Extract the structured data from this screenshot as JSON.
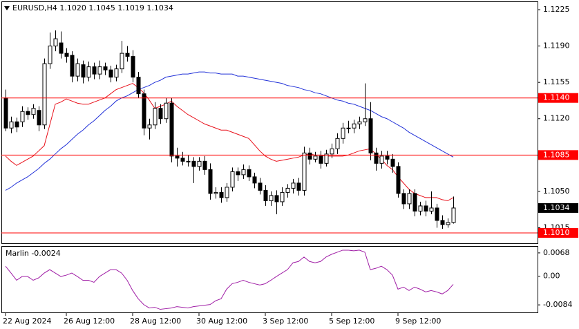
{
  "chart_data": [
    {
      "type": "candlestick",
      "title": "EURUSD,H4  1.1020 1.1045 1.1019 1.1034",
      "categories": [
        "22 Aug 2024",
        null,
        null,
        null,
        null,
        null,
        null,
        null,
        null,
        null,
        null,
        "26 Aug 12:00",
        null,
        null,
        null,
        null,
        null,
        null,
        null,
        null,
        null,
        null,
        null,
        "28 Aug 12:00",
        null,
        null,
        null,
        null,
        null,
        null,
        null,
        null,
        null,
        null,
        null,
        "30 Aug 12:00",
        null,
        null,
        null,
        null,
        null,
        null,
        null,
        null,
        null,
        null,
        null,
        "3 Sep 12:00",
        null,
        null,
        null,
        null,
        null,
        null,
        null,
        null,
        null,
        null,
        null,
        "5 Sep 12:00",
        null,
        null,
        null,
        null,
        null,
        null,
        null,
        null,
        null,
        null,
        null,
        "9 Sep 12:00",
        null,
        null,
        null,
        null,
        null,
        null,
        null,
        null,
        null,
        null
      ],
      "open": [
        1.114,
        1.1111,
        1.1117,
        1.1117,
        1.1127,
        1.1124,
        1.1128,
        1.1114,
        1.1173,
        1.119,
        1.1193,
        1.1183,
        1.1181,
        1.1161,
        1.1172,
        1.116,
        1.117,
        1.1163,
        1.117,
        1.1167,
        1.116,
        1.1168,
        1.1183,
        1.118,
        1.116,
        1.1144,
        1.1111,
        1.1114,
        1.113,
        1.112,
        1.1135,
        1.1084,
        1.1082,
        1.1079,
        1.1079,
        1.1074,
        1.1079,
        1.1071,
        1.1048,
        1.1049,
        1.1044,
        1.1054,
        1.1069,
        1.1066,
        1.1071,
        1.1064,
        1.1058,
        1.1051,
        1.1041,
        1.1046,
        1.104,
        1.1049,
        1.1053,
        1.1058,
        1.1051,
        1.1087,
        1.1081,
        1.1084,
        1.1077,
        1.1086,
        1.1091,
        1.1101,
        1.1111,
        1.1111,
        1.1115,
        1.1117,
        1.112,
        1.1087,
        1.1077,
        1.1084,
        1.1081,
        1.1074,
        1.1048,
        1.1038,
        1.1048,
        1.1031,
        1.1036,
        1.1031,
        1.1034,
        1.1022,
        1.1018,
        1.102
      ],
      "high": [
        1.1148,
        1.1122,
        1.1121,
        1.1132,
        1.1131,
        1.1134,
        1.1132,
        1.1178,
        1.1203,
        1.1205,
        1.1204,
        1.1188,
        1.1185,
        1.1178,
        1.1176,
        1.1175,
        1.1174,
        1.1176,
        1.1174,
        1.1171,
        1.1172,
        1.1195,
        1.119,
        1.1186,
        1.1165,
        1.1148,
        1.112,
        1.1136,
        1.1134,
        1.114,
        1.114,
        1.1092,
        1.1088,
        1.1085,
        1.1083,
        1.1083,
        1.1084,
        1.1077,
        1.1054,
        1.1054,
        1.1058,
        1.1073,
        1.1073,
        1.1076,
        1.1075,
        1.1068,
        1.1063,
        1.1056,
        1.105,
        1.1051,
        1.1054,
        1.1057,
        1.1062,
        1.1063,
        1.1093,
        1.1092,
        1.1088,
        1.1089,
        1.109,
        1.1096,
        1.1106,
        1.1116,
        1.1118,
        1.1119,
        1.1122,
        1.1154,
        1.1136,
        1.1092,
        1.1089,
        1.1089,
        1.1086,
        1.1078,
        1.1052,
        1.1052,
        1.1052,
        1.104,
        1.1041,
        1.105,
        1.1038,
        1.1027,
        1.1024,
        1.1045
      ],
      "low": [
        1.1108,
        1.1106,
        1.1107,
        1.1112,
        1.1119,
        1.112,
        1.1108,
        1.111,
        1.1168,
        1.1185,
        1.1178,
        1.1174,
        1.1155,
        1.1156,
        1.1154,
        1.1156,
        1.1158,
        1.1158,
        1.1162,
        1.1155,
        1.1156,
        1.1164,
        1.1175,
        1.1155,
        1.114,
        1.1104,
        1.11,
        1.111,
        1.1115,
        1.1116,
        1.1078,
        1.1074,
        1.1075,
        1.1074,
        1.1058,
        1.107,
        1.1066,
        1.1042,
        1.1043,
        1.1039,
        1.104,
        1.105,
        1.106,
        1.1062,
        1.106,
        1.1053,
        1.1047,
        1.1036,
        1.1036,
        1.1028,
        1.1036,
        1.1044,
        1.1048,
        1.1046,
        1.1046,
        1.1076,
        1.1078,
        1.1072,
        1.1074,
        1.1082,
        1.1086,
        1.1096,
        1.1106,
        1.1106,
        1.111,
        1.1113,
        1.108,
        1.107,
        1.1072,
        1.1076,
        1.1068,
        1.1044,
        1.1033,
        1.1033,
        1.1026,
        1.1027,
        1.1026,
        1.1028,
        1.1015,
        1.1014,
        1.1015,
        1.1019
      ],
      "close": [
        1.1111,
        1.1117,
        1.1112,
        1.1127,
        1.1124,
        1.113,
        1.1114,
        1.1173,
        1.119,
        1.1197,
        1.1183,
        1.118,
        1.1161,
        1.1173,
        1.116,
        1.117,
        1.1163,
        1.117,
        1.1167,
        1.116,
        1.1168,
        1.1183,
        1.118,
        1.116,
        1.1144,
        1.1111,
        1.1114,
        1.113,
        1.112,
        1.1135,
        1.1084,
        1.1082,
        1.1079,
        1.1079,
        1.1074,
        1.1079,
        1.1071,
        1.1048,
        1.1049,
        1.1044,
        1.1054,
        1.1069,
        1.1066,
        1.1071,
        1.1064,
        1.1058,
        1.1051,
        1.1041,
        1.1046,
        1.104,
        1.1049,
        1.1053,
        1.1058,
        1.1051,
        1.1087,
        1.1081,
        1.1084,
        1.1077,
        1.1086,
        1.1091,
        1.1101,
        1.1111,
        1.1111,
        1.1115,
        1.1117,
        1.112,
        1.1087,
        1.1077,
        1.1084,
        1.1081,
        1.1074,
        1.1048,
        1.1038,
        1.1048,
        1.1031,
        1.1036,
        1.1031,
        1.1034,
        1.1022,
        1.1018,
        1.102,
        1.1034
      ],
      "up_color": "#ffffff",
      "down_color": "#000000",
      "series": [
        {
          "color": "#e8101a",
          "values": [
            1.1084,
            1.1079,
            1.1075,
            1.1078,
            1.1081,
            1.1084,
            1.1089,
            1.1094,
            1.1114,
            1.1134,
            1.1136,
            1.1139,
            1.1137,
            1.1135,
            1.1134,
            1.1134,
            1.1136,
            1.1138,
            1.114,
            1.1144,
            1.1148,
            1.115,
            1.1152,
            1.1154,
            1.115,
            1.1145,
            1.1138,
            1.113,
            1.1132,
            1.1134,
            1.1137,
            1.1132,
            1.1128,
            1.1124,
            1.1121,
            1.1118,
            1.1115,
            1.1113,
            1.1111,
            1.1109,
            1.1109,
            1.1107,
            1.1105,
            1.1103,
            1.1101,
            1.1095,
            1.1089,
            1.1084,
            1.1081,
            1.1079,
            1.108,
            1.1081,
            1.1082,
            1.1083,
            1.1085,
            1.1086,
            1.1085,
            1.1085,
            1.1084,
            1.1084,
            1.1084,
            1.1084,
            1.1085,
            1.1087,
            1.1089,
            1.109,
            1.1091,
            1.1086,
            1.1081,
            1.1075,
            1.1071,
            1.1064,
            1.1058,
            1.1052,
            1.1048,
            1.1046,
            1.1044,
            1.1044,
            1.1044,
            1.1042,
            1.1041,
            1.1044
          ]
        },
        {
          "color": "#2030d8",
          "values": [
            1.1051,
            1.1054,
            1.1058,
            1.1061,
            1.1064,
            1.1068,
            1.1072,
            1.1077,
            1.1081,
            1.1086,
            1.1091,
            1.1095,
            1.11,
            1.1105,
            1.1109,
            1.1114,
            1.1118,
            1.1123,
            1.1128,
            1.1132,
            1.1137,
            1.114,
            1.1142,
            1.1145,
            1.1148,
            1.115,
            1.1152,
            1.1155,
            1.1157,
            1.116,
            1.1161,
            1.1162,
            1.1163,
            1.1163,
            1.1164,
            1.1165,
            1.1165,
            1.1164,
            1.1164,
            1.1163,
            1.1163,
            1.1163,
            1.1161,
            1.1161,
            1.116,
            1.1159,
            1.1158,
            1.1157,
            1.1156,
            1.1155,
            1.1154,
            1.1152,
            1.1151,
            1.115,
            1.1148,
            1.1147,
            1.1145,
            1.1144,
            1.1142,
            1.114,
            1.1138,
            1.1137,
            1.1135,
            1.1134,
            1.1132,
            1.113,
            1.1128,
            1.1125,
            1.1122,
            1.112,
            1.1117,
            1.1114,
            1.1111,
            1.1107,
            1.1104,
            1.1101,
            1.1098,
            1.1095,
            1.1092,
            1.1089,
            1.1086,
            1.1083
          ]
        }
      ],
      "levels": [
        {
          "value": 1.114,
          "label": "1.1140"
        },
        {
          "value": 1.1085,
          "label": "1.1085"
        },
        {
          "value": 1.101,
          "label": "1.1010"
        }
      ],
      "color": "#ff0000",
      "last_price": {
        "value": 1.1034,
        "label": "1.1034"
      },
      "ylim": [
        1.1,
        1.1233
      ],
      "yticks": [
        1.1225,
        {
          "value": 1.119,
          "label": "1.1190"
        },
        1.1155,
        {
          "value": 1.112,
          "label": "1.1120"
        },
        1.1085,
        {
          "value": 1.105,
          "label": "1.1050"
        },
        1.1015
      ]
    },
    {
      "type": "line",
      "title": "Marlin -0.0024",
      "color": "#a01ea6",
      "values": [
        0.0029,
        0.0009,
        -0.0012,
        -0.0001,
        -0.0001,
        -0.0012,
        -0.0005,
        0.0009,
        0.0019,
        0.0009,
        -0.0001,
        0.0003,
        0.0009,
        -0.0001,
        -0.0012,
        -0.0012,
        -0.0018,
        -0.0001,
        0.0009,
        0.0019,
        0.0019,
        0.0009,
        -0.0012,
        -0.0042,
        -0.0066,
        -0.0083,
        -0.0093,
        -0.0091,
        -0.0097,
        -0.0095,
        -0.0093,
        -0.0089,
        -0.0091,
        -0.0093,
        -0.0089,
        -0.0087,
        -0.0085,
        -0.0083,
        -0.0072,
        -0.0066,
        -0.0038,
        -0.0022,
        -0.0018,
        -0.0012,
        -0.0018,
        -0.0022,
        -0.0026,
        -0.0022,
        -0.0012,
        -0.0001,
        0.0009,
        0.0019,
        0.0039,
        0.0043,
        0.0056,
        0.0043,
        0.0039,
        0.0043,
        0.0056,
        0.0064,
        0.007,
        0.0076,
        0.0076,
        0.0074,
        0.0076,
        0.007,
        0.0019,
        0.0023,
        0.0029,
        0.0019,
        0.0003,
        -0.0038,
        -0.0032,
        -0.0042,
        -0.0032,
        -0.0038,
        -0.0046,
        -0.0042,
        -0.0046,
        -0.0052,
        -0.0042,
        -0.0024
      ],
      "ylim": [
        -0.0106,
        0.0088
      ],
      "yticks": [
        0.0068,
        {
          "value": 0,
          "label": "0.00"
        },
        -0.0084
      ]
    }
  ]
}
